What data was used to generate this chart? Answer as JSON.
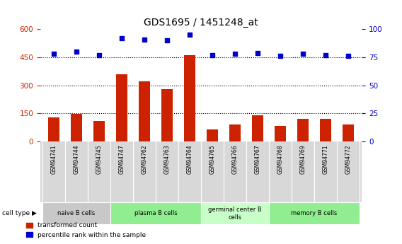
{
  "title": "GDS1695 / 1451248_at",
  "samples": [
    "GSM94741",
    "GSM94744",
    "GSM94745",
    "GSM94747",
    "GSM94762",
    "GSM94763",
    "GSM94764",
    "GSM94765",
    "GSM94766",
    "GSM94767",
    "GSM94768",
    "GSM94769",
    "GSM94771",
    "GSM94772"
  ],
  "transformed_count": [
    130,
    148,
    110,
    360,
    320,
    280,
    460,
    65,
    90,
    140,
    85,
    120,
    120,
    90
  ],
  "percentile_rank": [
    78,
    80,
    77,
    92,
    91,
    90,
    95,
    77,
    78,
    79,
    76,
    78,
    77,
    76
  ],
  "bar_color": "#cc2200",
  "dot_color": "#0000cc",
  "ylim_left": [
    0,
    600
  ],
  "ylim_right": [
    0,
    100
  ],
  "yticks_left": [
    0,
    150,
    300,
    450,
    600
  ],
  "yticks_right": [
    0,
    25,
    50,
    75,
    100
  ],
  "grid_lines": [
    150,
    300,
    450
  ],
  "cell_groups": [
    {
      "label": "naive B cells",
      "start": 0,
      "end": 3,
      "color": "#c8c8c8"
    },
    {
      "label": "plasma B cells",
      "start": 3,
      "end": 7,
      "color": "#90ee90"
    },
    {
      "label": "germinal center B\ncells",
      "start": 7,
      "end": 10,
      "color": "#c8ffc8"
    },
    {
      "label": "memory B cells",
      "start": 10,
      "end": 14,
      "color": "#90ee90"
    }
  ],
  "legend_labels": [
    "transformed count",
    "percentile rank within the sample"
  ],
  "cell_type_label": "cell type",
  "background_color": "#d8d8d8",
  "plot_bg_color": "#ffffff"
}
